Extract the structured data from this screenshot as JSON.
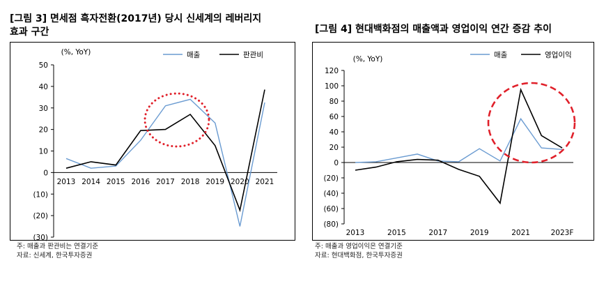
{
  "charts": [
    {
      "title_line1": "[그림 3] 면세점 흑자전환(2017년) 당시 신세계의 레버리지",
      "title_line2": "효과 구간",
      "footnote": "주: 매출과 판관비는 연결기준",
      "source": "자료: 신세계, 한국투자증권"
    },
    {
      "title_line1": "[그림 4] 현대백화점의 매출액과 영업이익 연간 증감 추이",
      "footnote": "주: 매출과 영업이익은 연결기준",
      "source": "자료: 현대백화점, 한국투자증권"
    }
  ],
  "colors": {
    "blue": "#6a9bd1",
    "black": "#000000",
    "dotted_red": "#e0202a",
    "dashed_red": "#e0202a"
  },
  "chart_data": [
    {
      "type": "line",
      "title": "[그림 3] 면세점 흑자전환(2017년) 당시 신세계의 레버리지 효과 구간",
      "unit_label": "(%, YoY)",
      "categories": [
        "2013",
        "2014",
        "2015",
        "2016",
        "2017",
        "2018",
        "2019",
        "2020",
        "2021"
      ],
      "ylim": [
        -30,
        50
      ],
      "yticks": [
        -30,
        -20,
        -10,
        0,
        10,
        20,
        30,
        40,
        50
      ],
      "ytick_labels": [
        "(30)",
        "(20)",
        "(10)",
        "0",
        "10",
        "20",
        "30",
        "40",
        "50"
      ],
      "series": [
        {
          "name": "매출",
          "color": "#6a9bd1",
          "values": [
            6.5,
            2,
            3,
            15,
            31,
            34,
            23,
            -25,
            32.5
          ]
        },
        {
          "name": "판관비",
          "color": "#000000",
          "values": [
            2,
            5,
            3.5,
            19.5,
            20,
            27,
            12.5,
            -17.5,
            38.5
          ]
        }
      ],
      "legend_position": "top-right",
      "annotation": "dotted red ellipse around 2017-2018"
    },
    {
      "type": "line",
      "title": "[그림 4] 현대백화점의 매출액과 영업이익 연간 증감 추이",
      "unit_label": "(%, YoY)",
      "categories": [
        "2013",
        "2014",
        "2015",
        "2016",
        "2017",
        "2018",
        "2019",
        "2020",
        "2021",
        "2022",
        "2023F"
      ],
      "xtick_labels": [
        "2013",
        "2015",
        "2017",
        "2019",
        "2021",
        "2023F"
      ],
      "ylim": [
        -80,
        120
      ],
      "yticks": [
        -80,
        -60,
        -40,
        -20,
        0,
        20,
        40,
        60,
        80,
        100,
        120
      ],
      "ytick_labels": [
        "(80)",
        "(60)",
        "(40)",
        "(20)",
        "0",
        "20",
        "40",
        "60",
        "80",
        "100",
        "120"
      ],
      "series": [
        {
          "name": "매출",
          "color": "#6a9bd1",
          "values": [
            0,
            1,
            6,
            11,
            2,
            1,
            18,
            2,
            57,
            19,
            17
          ]
        },
        {
          "name": "영업이익",
          "color": "#000000",
          "values": [
            -10,
            -6,
            1,
            4,
            3,
            -9,
            -18,
            -53,
            95,
            35,
            19
          ]
        }
      ],
      "legend_position": "top-right",
      "annotation": "dashed red ellipse around 2021-2022"
    }
  ]
}
